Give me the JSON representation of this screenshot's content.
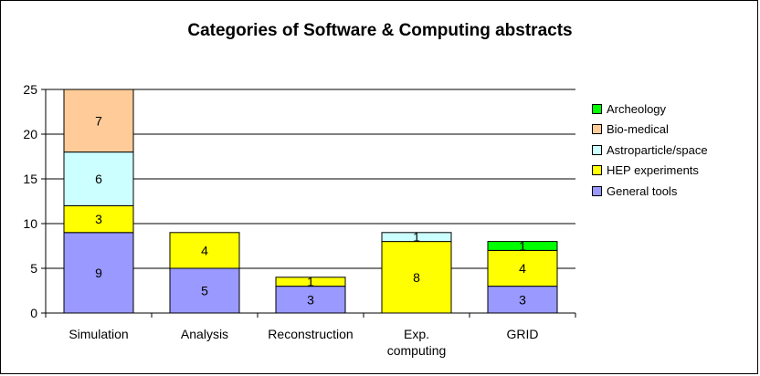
{
  "chart_data": {
    "type": "bar",
    "stacked": true,
    "title": "Categories of Software & Computing abstracts",
    "categories": [
      "Simulation",
      "Analysis",
      "Reconstruction",
      "Exp. computing",
      "GRID"
    ],
    "category_lines": [
      [
        "Simulation"
      ],
      [
        "Analysis"
      ],
      [
        "Reconstruction"
      ],
      [
        "Exp.",
        "computing"
      ],
      [
        "GRID"
      ]
    ],
    "series": [
      {
        "name": "General tools",
        "color": "#9999ff",
        "values": [
          9,
          5,
          3,
          0,
          3
        ]
      },
      {
        "name": "HEP experiments",
        "color": "#ffff00",
        "values": [
          3,
          4,
          1,
          8,
          4
        ]
      },
      {
        "name": "Astroparticle/space",
        "color": "#ccffff",
        "values": [
          6,
          0,
          0,
          1,
          0
        ]
      },
      {
        "name": "Bio-medical",
        "color": "#ffcc99",
        "values": [
          7,
          0,
          0,
          0,
          0
        ]
      },
      {
        "name": "Archeology",
        "color": "#00ff00",
        "values": [
          0,
          0,
          0,
          0,
          1
        ]
      }
    ],
    "ylim": [
      0,
      25
    ],
    "yticks": [
      0,
      5,
      10,
      15,
      20,
      25
    ],
    "grid": true,
    "legend_position": "right",
    "legend_order": [
      "Archeology",
      "Bio-medical",
      "Astroparticle/space",
      "HEP experiments",
      "General tools"
    ]
  }
}
